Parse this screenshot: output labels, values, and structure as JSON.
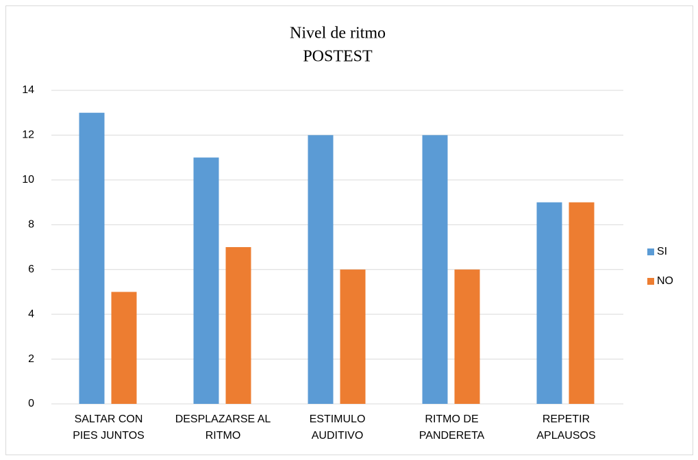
{
  "chart_data": {
    "type": "bar",
    "title": "Nivel de ritmo",
    "subtitle": "POSTEST",
    "categories": [
      "SALTAR CON\nPIES JUNTOS",
      "DESPLAZARSE AL\nRITMO",
      "ESTIMULO\nAUDITIVO",
      "RITMO DE\nPANDERETA",
      "REPETIR\nAPLAUSOS"
    ],
    "series": [
      {
        "name": "SI",
        "color": "#5b9bd5",
        "values": [
          13,
          11,
          12,
          12,
          9
        ]
      },
      {
        "name": "NO",
        "color": "#ed7d31",
        "values": [
          5,
          7,
          6,
          6,
          9
        ]
      }
    ],
    "ylim": [
      0,
      14
    ],
    "yticks": [
      0,
      2,
      4,
      6,
      8,
      10,
      12,
      14
    ],
    "grid": true,
    "legend": "right"
  }
}
